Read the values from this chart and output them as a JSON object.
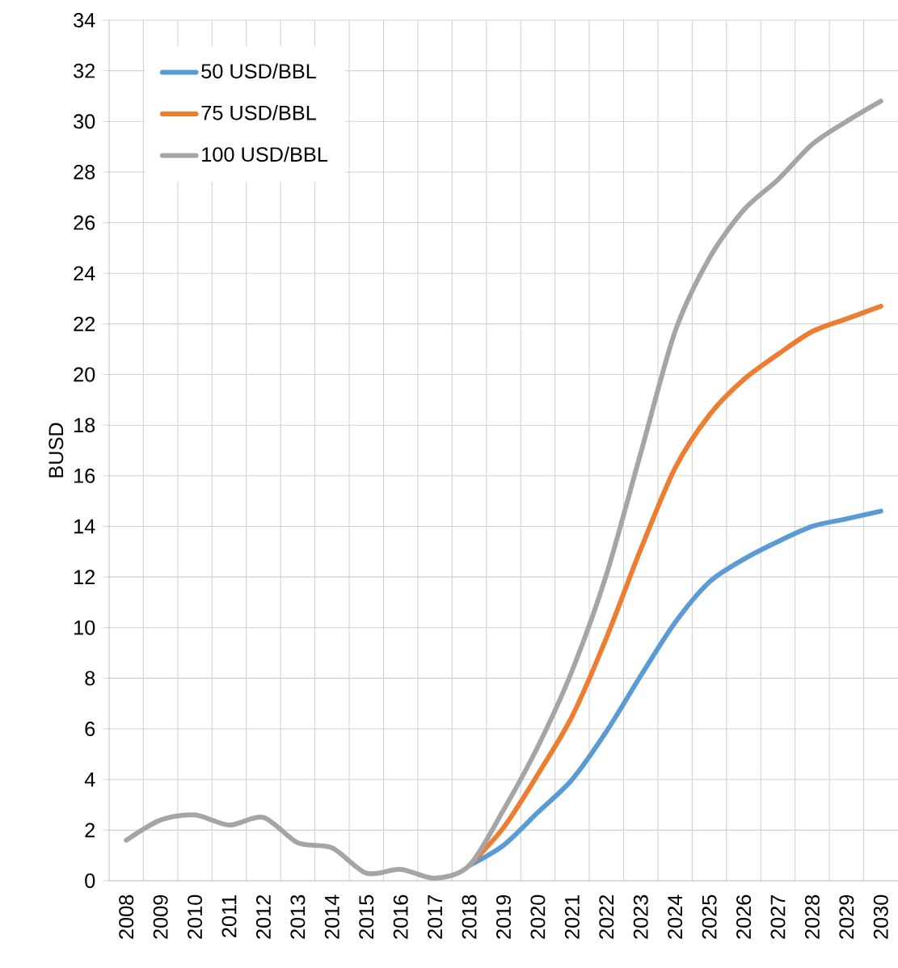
{
  "chart_data": {
    "type": "line",
    "ylabel": "BUSD",
    "categories": [
      "2008",
      "2009",
      "2010",
      "2011",
      "2012",
      "2013",
      "2014",
      "2015",
      "2016",
      "2017",
      "2018",
      "2019",
      "2020",
      "2021",
      "2022",
      "2023",
      "2024",
      "2025",
      "2026",
      "2027",
      "2028",
      "2029",
      "2030"
    ],
    "series": [
      {
        "name": "50 USD/BBL",
        "color": "#5b9bd5",
        "values": [
          null,
          null,
          null,
          null,
          null,
          null,
          null,
          null,
          null,
          null,
          0.6,
          1.4,
          2.7,
          4.0,
          5.9,
          8.1,
          10.2,
          11.8,
          12.7,
          13.4,
          14.0,
          14.3,
          14.6
        ]
      },
      {
        "name": "75 USD/BBL",
        "color": "#ed7d31",
        "values": [
          null,
          null,
          null,
          null,
          null,
          null,
          null,
          null,
          null,
          null,
          0.6,
          2.1,
          4.2,
          6.5,
          9.6,
          13.1,
          16.3,
          18.4,
          19.8,
          20.8,
          21.7,
          22.2,
          22.7
        ]
      },
      {
        "name": "100 USD/BBL",
        "color": "#a5a5a5",
        "values": [
          1.6,
          2.4,
          2.6,
          2.2,
          2.5,
          1.5,
          1.3,
          0.3,
          0.45,
          0.1,
          0.6,
          2.8,
          5.3,
          8.3,
          12.1,
          16.9,
          21.7,
          24.6,
          26.5,
          27.7,
          29.1,
          30.0,
          30.8
        ]
      }
    ],
    "ylim": [
      0,
      34
    ],
    "yticks": [
      0,
      2,
      4,
      6,
      8,
      10,
      12,
      14,
      16,
      18,
      20,
      22,
      24,
      26,
      28,
      30,
      32,
      34
    ],
    "grid": true,
    "legend": "top left",
    "marker": "none",
    "line_style": "solid"
  }
}
